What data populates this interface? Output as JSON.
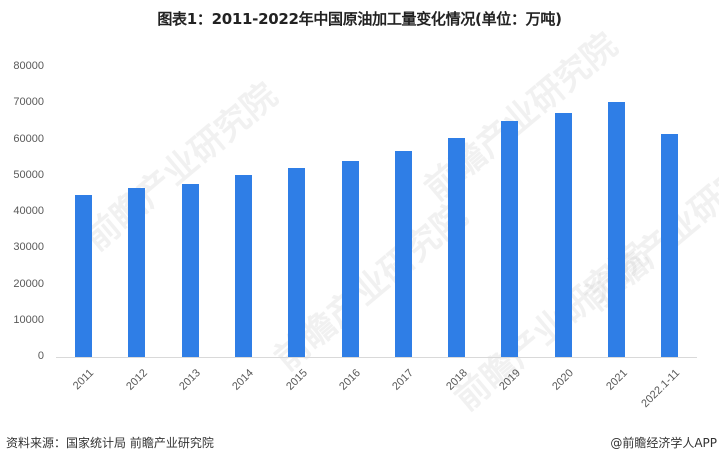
{
  "title": "图表1：2011-2022年中国原油加工量变化情况(单位：万吨)",
  "footer": {
    "source": "资料来源：国家统计局 前瞻产业研究院",
    "brand": "@前瞻经济学人APP"
  },
  "watermark": "前瞻产业研究院",
  "colors": {
    "bar": "#2f7ee6",
    "axis": "#d9d9d9",
    "text": "#595959"
  },
  "chart_data": {
    "type": "bar",
    "title": "图表1：2011-2022年中国原油加工量变化情况(单位：万吨)",
    "xlabel": "",
    "ylabel": "万吨",
    "ylim": [
      0,
      80000
    ],
    "yticks": [
      0,
      10000,
      20000,
      30000,
      40000,
      50000,
      60000,
      70000,
      80000
    ],
    "grid": false,
    "legend": "none",
    "categories": [
      "2011",
      "2012",
      "2013",
      "2014",
      "2015",
      "2016",
      "2017",
      "2018",
      "2019",
      "2020",
      "2021",
      "2022.1-11"
    ],
    "values": [
      44800,
      46700,
      47800,
      50300,
      52200,
      54100,
      56800,
      60400,
      65200,
      67400,
      70400,
      61500
    ]
  }
}
